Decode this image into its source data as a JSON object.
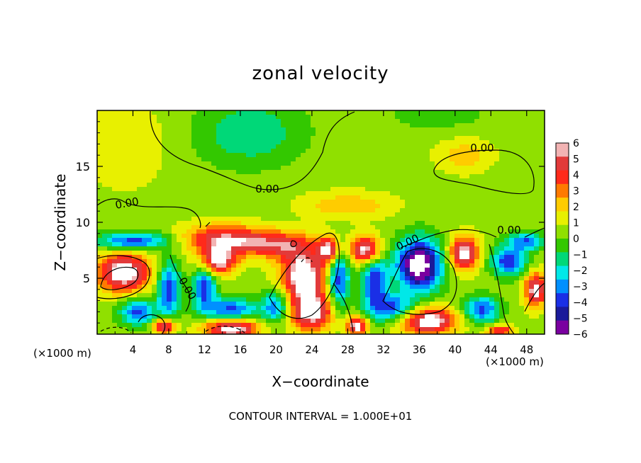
{
  "chart_data": {
    "type": "heatmap",
    "title": "zonal velocity",
    "xlabel": "X−coordinate",
    "ylabel": "Z−coordinate",
    "x_unit_label": "(×1000 m)",
    "x_unit_label_right": "(×1000 m)",
    "footer": "CONTOUR INTERVAL = 1.000E+01",
    "xlim": [
      0,
      50
    ],
    "ylim": [
      0,
      20
    ],
    "x_ticks": [
      4,
      8,
      12,
      16,
      20,
      24,
      28,
      32,
      36,
      40,
      44,
      48
    ],
    "y_ticks": [
      5,
      10,
      15
    ],
    "colorbar": {
      "ticks": [
        6,
        5,
        4,
        3,
        2,
        1,
        0,
        -1,
        -2,
        -3,
        -4,
        -5,
        -6
      ],
      "tick_labels": [
        "6",
        "5",
        "4",
        "3",
        "2",
        "1",
        "0",
        "−1",
        "−2",
        "−3",
        "−4",
        "−5",
        "−6"
      ],
      "colors": [
        "#f2b3b3",
        "#e23a3a",
        "#ff2a1a",
        "#ff7a00",
        "#ffcc00",
        "#e8f000",
        "#90e000",
        "#33c800",
        "#00d878",
        "#00e8e8",
        "#0090ff",
        "#1a2fe6",
        "#1a1a9a",
        "#7a00a0"
      ]
    },
    "contour_labels": [
      "0.00",
      "0.00",
      "0.00",
      "0.00",
      "0.00",
      "0.00",
      "0.00"
    ],
    "features": [
      {
        "x": 17,
        "y": 18,
        "u": -2.5,
        "rx": 6,
        "ry": 3
      },
      {
        "x": 38,
        "y": 20,
        "u": -1.2,
        "rx": 6,
        "ry": 2
      },
      {
        "x": 3,
        "y": 17,
        "u": 1.2,
        "rx": 5,
        "ry": 4
      },
      {
        "x": 41,
        "y": 16,
        "u": 2.0,
        "rx": 3,
        "ry": 1.5
      },
      {
        "x": 28,
        "y": 11.5,
        "u": 2.2,
        "rx": 5,
        "ry": 1.2
      },
      {
        "x": 14,
        "y": 8.5,
        "u": 5.2,
        "rx": 4.5,
        "ry": 1.3
      },
      {
        "x": 20,
        "y": 8.0,
        "u": 4.5,
        "rx": 4,
        "ry": 1.2
      },
      {
        "x": 13.5,
        "y": 6.5,
        "u": 6.5,
        "rx": 2,
        "ry": 1.2
      },
      {
        "x": 3,
        "y": 5.5,
        "u": 7.0,
        "rx": 3,
        "ry": 1.8
      },
      {
        "x": 4,
        "y": 8.3,
        "u": -5.5,
        "rx": 4,
        "ry": 0.8
      },
      {
        "x": 8,
        "y": 4.0,
        "u": -5.5,
        "rx": 1.3,
        "ry": 2.5
      },
      {
        "x": 12,
        "y": 4.2,
        "u": -5.2,
        "rx": 1.3,
        "ry": 2.0
      },
      {
        "x": 23,
        "y": 5.3,
        "u": 7.0,
        "rx": 2.5,
        "ry": 2.3
      },
      {
        "x": 26,
        "y": 7.5,
        "u": 6.5,
        "rx": 1.2,
        "ry": 1.2
      },
      {
        "x": 27,
        "y": 5.0,
        "u": -5.5,
        "rx": 1.2,
        "ry": 3
      },
      {
        "x": 30,
        "y": 7.5,
        "u": 7.0,
        "rx": 1.8,
        "ry": 1.3
      },
      {
        "x": 31,
        "y": 4.8,
        "u": -5.5,
        "rx": 1.5,
        "ry": 2.5
      },
      {
        "x": 36,
        "y": 6.2,
        "u": -9.0,
        "rx": 2.5,
        "ry": 2.3
      },
      {
        "x": 41,
        "y": 7.2,
        "u": 6.5,
        "rx": 1.7,
        "ry": 1.5
      },
      {
        "x": 46,
        "y": 6.5,
        "u": -5.5,
        "rx": 2,
        "ry": 1.3
      },
      {
        "x": 48,
        "y": 8.3,
        "u": -4.5,
        "rx": 2,
        "ry": 0.8
      },
      {
        "x": 49,
        "y": 4.0,
        "u": 6.5,
        "rx": 1.2,
        "ry": 1.5
      },
      {
        "x": 4.5,
        "y": 2.0,
        "u": -5.0,
        "rx": 2.0,
        "ry": 1.2
      },
      {
        "x": 7.5,
        "y": 0.7,
        "u": 6.5,
        "rx": 1.2,
        "ry": 0.7
      },
      {
        "x": 15,
        "y": 2.2,
        "u": -5.0,
        "rx": 3,
        "ry": 1.0
      },
      {
        "x": 15,
        "y": 0.5,
        "u": 7.0,
        "rx": 3,
        "ry": 0.9
      },
      {
        "x": 20,
        "y": 2.5,
        "u": -4.5,
        "rx": 1.5,
        "ry": 1.5
      },
      {
        "x": 24,
        "y": 2.0,
        "u": 6.5,
        "rx": 2.5,
        "ry": 1.7
      },
      {
        "x": 29,
        "y": 0.7,
        "u": 6.5,
        "rx": 1.2,
        "ry": 0.8
      },
      {
        "x": 33,
        "y": 2.3,
        "u": -5.0,
        "rx": 2.5,
        "ry": 1.2
      },
      {
        "x": 37,
        "y": 1.2,
        "u": 7.0,
        "rx": 3.2,
        "ry": 1.2
      },
      {
        "x": 43,
        "y": 2.2,
        "u": -5.0,
        "rx": 2,
        "ry": 1.2
      },
      {
        "x": 45,
        "y": 0.3,
        "u": 5.0,
        "rx": 1.5,
        "ry": 0.5
      }
    ]
  }
}
